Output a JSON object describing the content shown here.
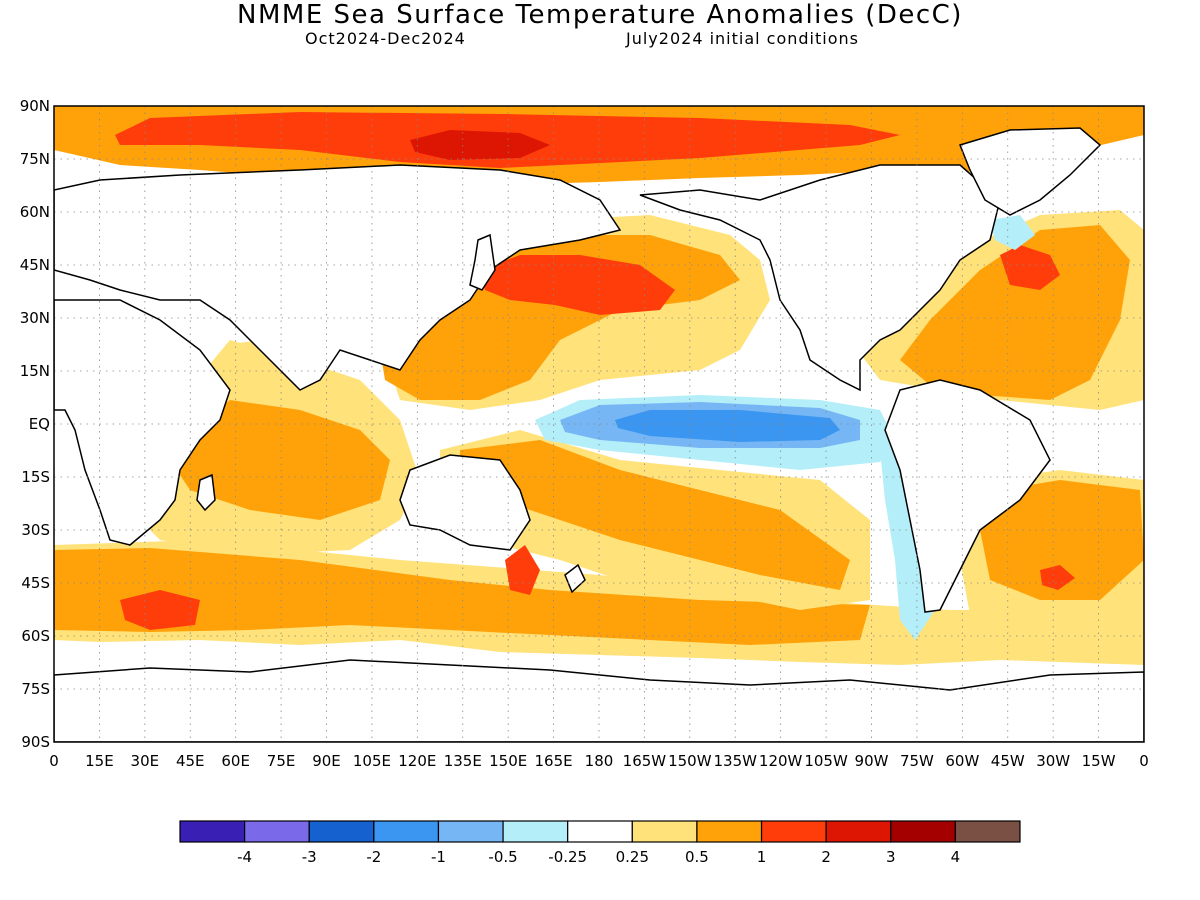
{
  "header": {
    "title": "NMME Sea Surface Temperature Anomalies (DecC)",
    "period": "Oct2024-Dec2024",
    "initial_conditions": "July2024 initial conditions"
  },
  "map": {
    "lat_labels": [
      "90N",
      "75N",
      "60N",
      "45N",
      "30N",
      "15N",
      "EQ",
      "15S",
      "30S",
      "45S",
      "60S",
      "75S",
      "90S"
    ],
    "lon_labels": [
      "0",
      "15E",
      "30E",
      "45E",
      "60E",
      "75E",
      "90E",
      "105E",
      "120E",
      "135E",
      "150E",
      "165E",
      "180",
      "165W",
      "150W",
      "135W",
      "120W",
      "105W",
      "90W",
      "75W",
      "60W",
      "45W",
      "30W",
      "15W",
      "0"
    ]
  },
  "colorbar": {
    "colors": [
      "#3a1fb4",
      "#7a6aea",
      "#1561cf",
      "#3a96f0",
      "#76b6f4",
      "#b4eef9",
      "#ffffff",
      "#ffe27a",
      "#ffa20a",
      "#ff3d0a",
      "#dd1503",
      "#a50000",
      "#7a5045"
    ],
    "labels": [
      "-4",
      "-3",
      "-2",
      "-1",
      "-0.5",
      "-0.25",
      "0.25",
      "0.5",
      "1",
      "2",
      "3",
      "4"
    ]
  }
}
